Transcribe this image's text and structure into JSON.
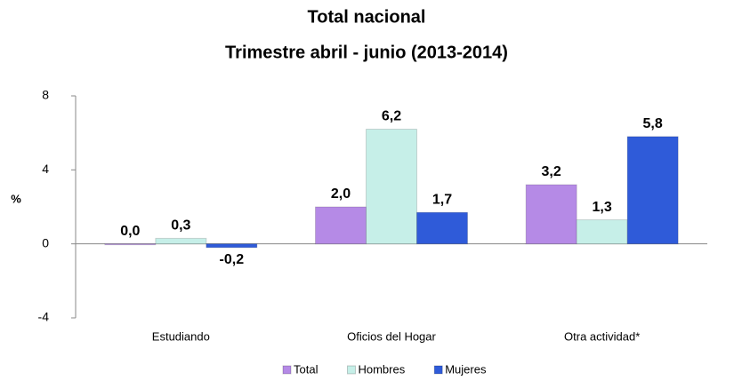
{
  "chart_data": {
    "type": "bar",
    "title": "Total nacional",
    "subtitle": "Trimestre  abril - junio (2013-2014)",
    "y_label": "%",
    "categories": [
      "Estudiando",
      "Oficios del Hogar",
      "Otra actividad*"
    ],
    "series": [
      {
        "name": "Total",
        "color": "#b58ae6",
        "values": [
          0.0,
          2.0,
          3.2
        ],
        "value_labels": [
          "0,0",
          "2,0",
          "3,2"
        ]
      },
      {
        "name": "Hombres",
        "color": "#c6efe8",
        "values": [
          0.3,
          6.2,
          1.3
        ],
        "value_labels": [
          "0,3",
          "6,2",
          "1,3"
        ]
      },
      {
        "name": "Mujeres",
        "color": "#2f5bd9",
        "values": [
          -0.2,
          1.7,
          5.8
        ],
        "value_labels": [
          "-0,2",
          "1,7",
          "5,8"
        ]
      }
    ],
    "ylim": [
      -4,
      8
    ],
    "yticks": [
      -4,
      0,
      4,
      8
    ]
  }
}
